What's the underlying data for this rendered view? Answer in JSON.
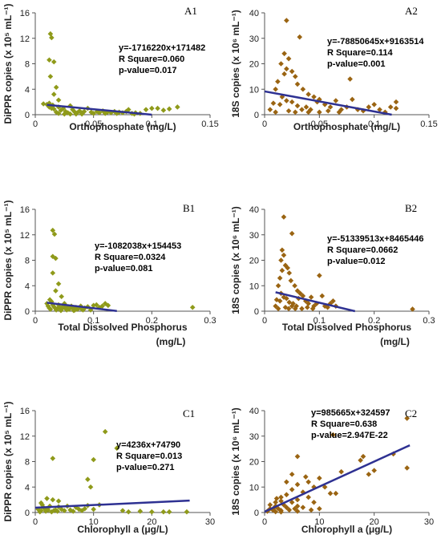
{
  "chart_data": [
    {
      "id": "A1",
      "type": "scatter",
      "tag": "A1",
      "xlabel": "Orthophosphate (mg/L)",
      "xlabel2": "",
      "ylabel": "DiPPR copies (x 10⁵ mL⁻¹)",
      "xlim": [
        0,
        0.15
      ],
      "xticks": [
        "0",
        "0.05",
        "0.1",
        "0.15"
      ],
      "ylim": [
        0,
        16
      ],
      "yticks": [
        "0",
        "4",
        "8",
        "12",
        "16"
      ],
      "marker_color": "#8f9a1a",
      "equation": [
        "y=-1716220x+171482",
        "R Square=0.060",
        "p-value=0.017"
      ],
      "trend": [
        [
          0.01,
          1.54
        ],
        [
          0.1,
          0.0
        ]
      ],
      "points": [
        [
          0.013,
          12.7
        ],
        [
          0.014,
          12.1
        ],
        [
          0.012,
          8.6
        ],
        [
          0.016,
          8.3
        ],
        [
          0.013,
          6.0
        ],
        [
          0.018,
          4.3
        ],
        [
          0.016,
          3.2
        ],
        [
          0.02,
          2.3
        ],
        [
          0.012,
          1.8
        ],
        [
          0.015,
          1.5
        ],
        [
          0.007,
          1.7
        ],
        [
          0.01,
          1.6
        ],
        [
          0.012,
          1.2
        ],
        [
          0.014,
          1.0
        ],
        [
          0.016,
          0.9
        ],
        [
          0.02,
          1.2
        ],
        [
          0.022,
          0.7
        ],
        [
          0.024,
          1.0
        ],
        [
          0.018,
          0.4
        ],
        [
          0.026,
          0.5
        ],
        [
          0.028,
          0.3
        ],
        [
          0.03,
          1.4
        ],
        [
          0.032,
          0.8
        ],
        [
          0.034,
          0.4
        ],
        [
          0.036,
          0.3
        ],
        [
          0.038,
          0.6
        ],
        [
          0.04,
          0.3
        ],
        [
          0.042,
          0.5
        ],
        [
          0.045,
          1.0
        ],
        [
          0.048,
          0.4
        ],
        [
          0.05,
          0.2
        ],
        [
          0.053,
          0.5
        ],
        [
          0.055,
          0.3
        ],
        [
          0.058,
          0.6
        ],
        [
          0.06,
          0.2
        ],
        [
          0.062,
          0.4
        ],
        [
          0.065,
          0.3
        ],
        [
          0.068,
          0.5
        ],
        [
          0.07,
          0.2
        ],
        [
          0.072,
          0.4
        ],
        [
          0.075,
          0.3
        ],
        [
          0.078,
          0.5
        ],
        [
          0.08,
          0.8
        ],
        [
          0.083,
          0.2
        ],
        [
          0.086,
          0.3
        ],
        [
          0.09,
          0.2
        ],
        [
          0.095,
          0.8
        ],
        [
          0.1,
          1.0
        ],
        [
          0.105,
          1.0
        ],
        [
          0.11,
          0.7
        ],
        [
          0.115,
          0.9
        ],
        [
          0.122,
          1.2
        ],
        [
          0.02,
          0.2
        ],
        [
          0.025,
          0.1
        ],
        [
          0.03,
          0.1
        ],
        [
          0.035,
          0.1
        ],
        [
          0.04,
          0.1
        ],
        [
          0.085,
          0.1
        ]
      ]
    },
    {
      "id": "A2",
      "type": "scatter",
      "tag": "A2",
      "xlabel": "Orthophosphate (mg/L)",
      "xlabel2": "",
      "ylabel": "18S copies (x 10⁶ mL⁻¹)",
      "xlim": [
        0,
        0.15
      ],
      "xticks": [
        "0",
        "0.05",
        "0.1",
        "0.15"
      ],
      "ylim": [
        0,
        40
      ],
      "yticks": [
        "0",
        "10",
        "20",
        "30",
        "40"
      ],
      "marker_color": "#9a6412",
      "equation": [
        "y=-78850645x+9163514",
        "R Square=0.114",
        "p-value=0.001"
      ],
      "trend": [
        [
          0.0,
          9.16
        ],
        [
          0.116,
          0.0
        ]
      ],
      "points": [
        [
          0.02,
          37
        ],
        [
          0.032,
          30.5
        ],
        [
          0.018,
          24
        ],
        [
          0.022,
          22
        ],
        [
          0.015,
          20
        ],
        [
          0.02,
          18
        ],
        [
          0.025,
          17
        ],
        [
          0.018,
          16
        ],
        [
          0.028,
          15
        ],
        [
          0.012,
          13
        ],
        [
          0.03,
          12
        ],
        [
          0.01,
          10
        ],
        [
          0.035,
          10
        ],
        [
          0.04,
          8
        ],
        [
          0.045,
          7
        ],
        [
          0.05,
          6
        ],
        [
          0.016,
          7
        ],
        [
          0.02,
          5.5
        ],
        [
          0.025,
          5
        ],
        [
          0.008,
          4.5
        ],
        [
          0.014,
          4
        ],
        [
          0.03,
          3.5
        ],
        [
          0.038,
          3
        ],
        [
          0.042,
          2
        ],
        [
          0.048,
          5
        ],
        [
          0.055,
          4
        ],
        [
          0.06,
          3
        ],
        [
          0.065,
          5.5
        ],
        [
          0.07,
          2
        ],
        [
          0.075,
          3
        ],
        [
          0.078,
          14
        ],
        [
          0.08,
          6
        ],
        [
          0.085,
          2
        ],
        [
          0.09,
          1.5
        ],
        [
          0.095,
          3
        ],
        [
          0.1,
          4
        ],
        [
          0.105,
          2
        ],
        [
          0.11,
          1
        ],
        [
          0.115,
          3
        ],
        [
          0.12,
          5
        ],
        [
          0.005,
          2
        ],
        [
          0.01,
          1
        ],
        [
          0.022,
          1.5
        ],
        [
          0.028,
          1
        ],
        [
          0.034,
          2
        ],
        [
          0.04,
          1
        ],
        [
          0.05,
          1
        ],
        [
          0.058,
          1.5
        ],
        [
          0.068,
          1
        ],
        [
          0.12,
          2.5
        ]
      ]
    },
    {
      "id": "B1",
      "type": "scatter",
      "tag": "B1",
      "xlabel": "Total Dissolved Phosphorus",
      "xlabel2": "(mg/L)",
      "ylabel": "DiPPR copies (x 10⁵ mL⁻¹)",
      "xlim": [
        0,
        0.3
      ],
      "xticks": [
        "0",
        "0.1",
        "0.2",
        "0.3"
      ],
      "ylim": [
        0,
        16
      ],
      "yticks": [
        "0",
        "4",
        "8",
        "12",
        "16"
      ],
      "marker_color": "#8f9a1a",
      "equation": [
        "y=-1082038x+154453",
        "R Square=0.0324",
        "p-value=0.081"
      ],
      "trend": [
        [
          0.02,
          1.33
        ],
        [
          0.14,
          0.03
        ]
      ],
      "points": [
        [
          0.03,
          12.7
        ],
        [
          0.033,
          12.1
        ],
        [
          0.03,
          8.6
        ],
        [
          0.035,
          8.3
        ],
        [
          0.03,
          6.0
        ],
        [
          0.04,
          4.3
        ],
        [
          0.035,
          3.2
        ],
        [
          0.045,
          2.3
        ],
        [
          0.025,
          1.8
        ],
        [
          0.028,
          1.5
        ],
        [
          0.02,
          1.2
        ],
        [
          0.022,
          0.8
        ],
        [
          0.024,
          0.5
        ],
        [
          0.026,
          0.3
        ],
        [
          0.03,
          1.0
        ],
        [
          0.032,
          0.7
        ],
        [
          0.034,
          0.5
        ],
        [
          0.038,
          0.4
        ],
        [
          0.04,
          1.0
        ],
        [
          0.042,
          0.6
        ],
        [
          0.045,
          0.3
        ],
        [
          0.048,
          0.8
        ],
        [
          0.05,
          1.2
        ],
        [
          0.052,
          0.4
        ],
        [
          0.055,
          0.6
        ],
        [
          0.058,
          0.3
        ],
        [
          0.06,
          0.5
        ],
        [
          0.062,
          0.8
        ],
        [
          0.065,
          0.4
        ],
        [
          0.068,
          0.2
        ],
        [
          0.07,
          0.6
        ],
        [
          0.072,
          0.3
        ],
        [
          0.075,
          0.5
        ],
        [
          0.078,
          0.8
        ],
        [
          0.08,
          0.3
        ],
        [
          0.085,
          0.5
        ],
        [
          0.09,
          0.7
        ],
        [
          0.095,
          0.2
        ],
        [
          0.1,
          0.9
        ],
        [
          0.105,
          1.0
        ],
        [
          0.11,
          0.6
        ],
        [
          0.115,
          0.8
        ],
        [
          0.12,
          1.2
        ],
        [
          0.125,
          0.9
        ],
        [
          0.27,
          0.6
        ],
        [
          0.036,
          0.2
        ],
        [
          0.044,
          0.1
        ],
        [
          0.054,
          0.2
        ],
        [
          0.066,
          0.1
        ],
        [
          0.082,
          0.2
        ]
      ]
    },
    {
      "id": "B2",
      "type": "scatter",
      "tag": "B2",
      "xlabel": "Total Dissolved Phosphorus",
      "xlabel2": "(mg/L)",
      "ylabel": "18S copies (x 10⁶ mL⁻¹)",
      "xlim": [
        0,
        0.3
      ],
      "xticks": [
        "0",
        "0.1",
        "0.2",
        "0.3"
      ],
      "ylim": [
        0,
        40
      ],
      "yticks": [
        "0",
        "10",
        "20",
        "30",
        "40"
      ],
      "marker_color": "#9a6412",
      "equation": [
        "y=-51339513x+8465446",
        "R Square=0.0662",
        "p-value=0.012"
      ],
      "trend": [
        [
          0.02,
          7.44
        ],
        [
          0.165,
          0.0
        ]
      ],
      "points": [
        [
          0.035,
          37
        ],
        [
          0.05,
          30.5
        ],
        [
          0.032,
          24
        ],
        [
          0.035,
          22
        ],
        [
          0.03,
          20
        ],
        [
          0.038,
          18
        ],
        [
          0.042,
          17
        ],
        [
          0.032,
          16
        ],
        [
          0.045,
          15
        ],
        [
          0.028,
          13
        ],
        [
          0.048,
          12
        ],
        [
          0.025,
          10
        ],
        [
          0.055,
          10
        ],
        [
          0.06,
          8
        ],
        [
          0.065,
          7
        ],
        [
          0.07,
          6
        ],
        [
          0.03,
          7
        ],
        [
          0.035,
          5.5
        ],
        [
          0.04,
          5
        ],
        [
          0.022,
          4.5
        ],
        [
          0.028,
          4
        ],
        [
          0.045,
          3.5
        ],
        [
          0.052,
          3
        ],
        [
          0.058,
          2
        ],
        [
          0.062,
          5
        ],
        [
          0.075,
          4
        ],
        [
          0.08,
          3
        ],
        [
          0.085,
          5.5
        ],
        [
          0.09,
          2
        ],
        [
          0.095,
          3
        ],
        [
          0.1,
          14
        ],
        [
          0.105,
          6
        ],
        [
          0.11,
          2
        ],
        [
          0.115,
          1.5
        ],
        [
          0.12,
          3
        ],
        [
          0.125,
          4
        ],
        [
          0.13,
          2
        ],
        [
          0.02,
          2
        ],
        [
          0.025,
          1
        ],
        [
          0.038,
          1.5
        ],
        [
          0.044,
          1
        ],
        [
          0.05,
          2
        ],
        [
          0.056,
          1
        ],
        [
          0.068,
          1
        ],
        [
          0.078,
          1.5
        ],
        [
          0.088,
          1
        ],
        [
          0.27,
          0.8
        ]
      ]
    },
    {
      "id": "C1",
      "type": "scatter",
      "tag": "C1",
      "xlabel": "Chlorophyll a (μg/L)",
      "xlabel2": "",
      "ylabel": "DiPPR copies (x 10⁵ mL⁻¹)",
      "xlim": [
        0,
        30
      ],
      "xticks": [
        "0",
        "10",
        "20",
        "30"
      ],
      "ylim": [
        0,
        16
      ],
      "yticks": [
        "0",
        "4",
        "8",
        "12",
        "16"
      ],
      "marker_color": "#8f9a1a",
      "equation": [
        "y=4236x+74790",
        "R Square=0.013",
        "p-value=0.271"
      ],
      "trend": [
        [
          0.0,
          0.75
        ],
        [
          26.5,
          1.87
        ]
      ],
      "points": [
        [
          12,
          12.7
        ],
        [
          14,
          10.1
        ],
        [
          3,
          8.5
        ],
        [
          10,
          8.3
        ],
        [
          9,
          5.2
        ],
        [
          9.5,
          4.0
        ],
        [
          2,
          2.2
        ],
        [
          3,
          2.0
        ],
        [
          4,
          1.8
        ],
        [
          1,
          1.5
        ],
        [
          2.5,
          1.0
        ],
        [
          1.5,
          0.7
        ],
        [
          0.5,
          0.5
        ],
        [
          1,
          0.3
        ],
        [
          2,
          0.6
        ],
        [
          3.5,
          0.4
        ],
        [
          4,
          0.9
        ],
        [
          4.5,
          0.5
        ],
        [
          5,
          0.3
        ],
        [
          5.5,
          1.0
        ],
        [
          6,
          0.4
        ],
        [
          6.5,
          0.2
        ],
        [
          7,
          0.8
        ],
        [
          7.5,
          0.5
        ],
        [
          8,
          0.3
        ],
        [
          8.5,
          0.6
        ],
        [
          9,
          1.1
        ],
        [
          10,
          0.5
        ],
        [
          11,
          1.2
        ],
        [
          0.8,
          0.1
        ],
        [
          1.2,
          1.2
        ],
        [
          1.8,
          0.2
        ],
        [
          2.2,
          0.4
        ],
        [
          2.8,
          0.1
        ],
        [
          3.2,
          0.3
        ],
        [
          3.8,
          0.2
        ],
        [
          15,
          0.3
        ],
        [
          16,
          0.1
        ],
        [
          18,
          0.2
        ],
        [
          20,
          0.1
        ],
        [
          22,
          0.1
        ],
        [
          23,
          0.1
        ],
        [
          26,
          0.1
        ]
      ]
    },
    {
      "id": "C2",
      "type": "scatter",
      "tag": "C2",
      "xlabel": "Chlorophyll a (μg/L)",
      "xlabel2": "",
      "ylabel": "18S copies (x 10⁶ mL⁻¹)",
      "xlim": [
        0,
        30
      ],
      "xticks": [
        "0",
        "10",
        "20",
        "30"
      ],
      "ylim": [
        0,
        40
      ],
      "yticks": [
        "0",
        "10",
        "20",
        "30",
        "40"
      ],
      "marker_color": "#9a6412",
      "equation": [
        "y=985665x+324597",
        "R Square=0.638",
        "p-value=2.947E-22"
      ],
      "trend": [
        [
          0.0,
          0.32
        ],
        [
          26.5,
          26.4
        ]
      ],
      "points": [
        [
          26,
          37
        ],
        [
          12.5,
          30.5
        ],
        [
          23.5,
          23
        ],
        [
          18,
          22
        ],
        [
          6,
          22
        ],
        [
          17.5,
          20.5
        ],
        [
          26,
          17.5
        ],
        [
          20,
          16.5
        ],
        [
          14,
          16
        ],
        [
          19,
          15
        ],
        [
          5,
          15
        ],
        [
          7.5,
          14
        ],
        [
          10,
          13.5
        ],
        [
          4,
          12
        ],
        [
          8,
          12
        ],
        [
          6,
          11
        ],
        [
          9,
          10
        ],
        [
          11,
          10
        ],
        [
          5,
          9
        ],
        [
          7,
          8
        ],
        [
          12,
          7.5
        ],
        [
          13,
          7.5
        ],
        [
          3,
          6
        ],
        [
          4,
          7
        ],
        [
          8,
          6
        ],
        [
          6,
          5
        ],
        [
          2,
          4
        ],
        [
          3,
          4.5
        ],
        [
          5,
          4
        ],
        [
          1,
          3
        ],
        [
          2,
          2.5
        ],
        [
          3.5,
          3
        ],
        [
          4,
          2
        ],
        [
          6,
          2.5
        ],
        [
          9,
          4
        ],
        [
          1,
          1.5
        ],
        [
          1.5,
          1
        ],
        [
          2.5,
          1.5
        ],
        [
          3,
          0.8
        ],
        [
          4.5,
          1
        ],
        [
          5.5,
          1.5
        ],
        [
          7,
          2
        ],
        [
          8.5,
          1
        ],
        [
          10,
          1.5
        ],
        [
          0.5,
          0.5
        ],
        [
          2,
          0.3
        ],
        [
          3,
          0.2
        ],
        [
          6,
          0.5
        ],
        [
          2.2,
          5.5
        ],
        [
          1.8,
          2
        ]
      ]
    }
  ]
}
